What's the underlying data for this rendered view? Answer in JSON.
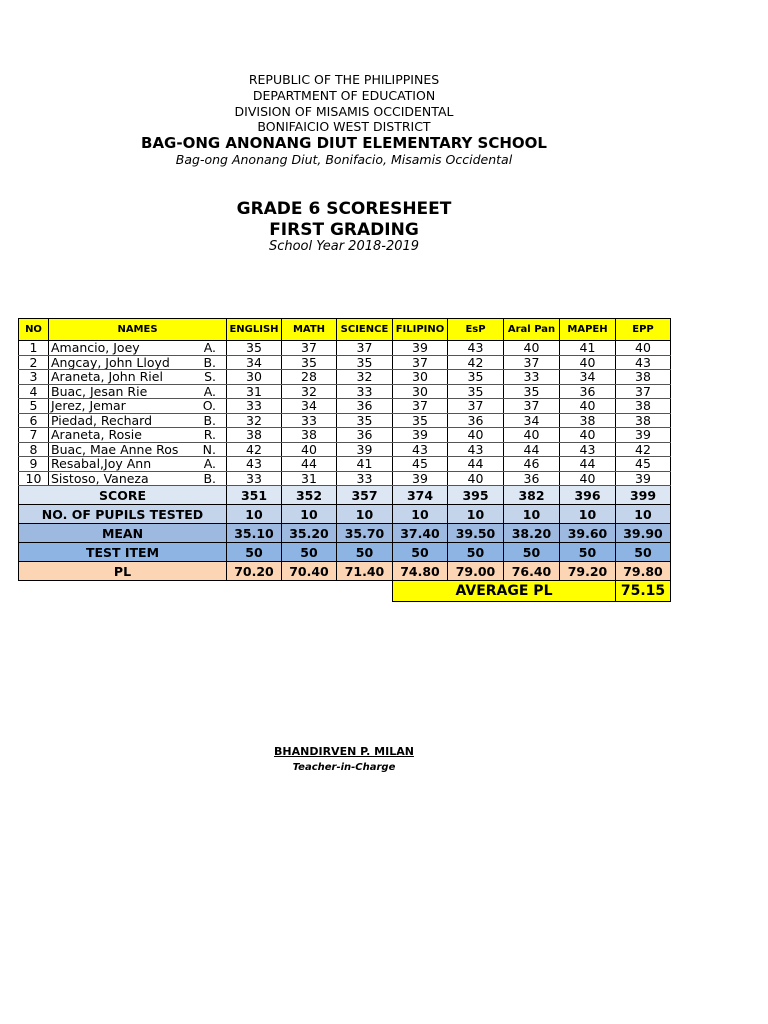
{
  "header": {
    "line1": "REPUBLIC OF THE PHILIPPINES",
    "line2": "DEPARTMENT OF EDUCATION",
    "line3": "DIVISION OF MISAMIS OCCIDENTAL",
    "line4": "BONIFAICIO WEST  DISTRICT",
    "school": "BAG-ONG ANONANG DIUT ELEMENTARY SCHOOL",
    "address": "Bag-ong Anonang Diut, Bonifacio, Misamis Occidental",
    "title": "GRADE 6 SCORESHEET",
    "subtitle": "FIRST GRADING",
    "school_year": "School Year 2018-2019"
  },
  "table": {
    "columns": [
      "NO",
      "NAMES",
      "ENGLISH",
      "MATH",
      "SCIENCE",
      "FILIPINO",
      "EsP",
      "Aral Pan",
      "MAPEH",
      "EPP"
    ],
    "rows": [
      {
        "no": "1",
        "name": "Amancio, Joey",
        "mi": "A.",
        "scores": [
          "35",
          "37",
          "37",
          "39",
          "43",
          "40",
          "41",
          "40"
        ]
      },
      {
        "no": "2",
        "name": "Angcay, John Lloyd",
        "mi": "B.",
        "scores": [
          "34",
          "35",
          "35",
          "37",
          "42",
          "37",
          "40",
          "43"
        ]
      },
      {
        "no": "3",
        "name": "Araneta, John Riel",
        "mi": "S.",
        "scores": [
          "30",
          "28",
          "32",
          "30",
          "35",
          "33",
          "34",
          "38"
        ]
      },
      {
        "no": "4",
        "name": "Buac, Jesan Rie",
        "mi": "A.",
        "scores": [
          "31",
          "32",
          "33",
          "30",
          "35",
          "35",
          "36",
          "37"
        ]
      },
      {
        "no": "5",
        "name": "Jerez, Jemar",
        "mi": "O.",
        "scores": [
          "33",
          "34",
          "36",
          "37",
          "37",
          "37",
          "40",
          "38"
        ]
      },
      {
        "no": "6",
        "name": "Piedad, Rechard",
        "mi": "B.",
        "scores": [
          "32",
          "33",
          "35",
          "35",
          "36",
          "34",
          "38",
          "38"
        ]
      },
      {
        "no": "7",
        "name": "Araneta, Rosie",
        "mi": "R.",
        "scores": [
          "38",
          "38",
          "36",
          "39",
          "40",
          "40",
          "40",
          "39"
        ]
      },
      {
        "no": "8",
        "name": "Buac, Mae Anne Ros",
        "mi": "N.",
        "scores": [
          "42",
          "40",
          "39",
          "43",
          "43",
          "44",
          "43",
          "42"
        ]
      },
      {
        "no": "9",
        "name": "Resabal,Joy Ann",
        "mi": "A.",
        "scores": [
          "43",
          "44",
          "41",
          "45",
          "44",
          "46",
          "44",
          "45"
        ]
      },
      {
        "no": "10",
        "name": "Sistoso, Vaneza",
        "mi": "B.",
        "scores": [
          "33",
          "31",
          "33",
          "39",
          "40",
          "36",
          "40",
          "39"
        ]
      }
    ],
    "summary": [
      {
        "key": "score",
        "label": "SCORE",
        "values": [
          "351",
          "352",
          "357",
          "374",
          "395",
          "382",
          "396",
          "399"
        ]
      },
      {
        "key": "pupils",
        "label": "NO. OF PUPILS TESTED",
        "values": [
          "10",
          "10",
          "10",
          "10",
          "10",
          "10",
          "10",
          "10"
        ]
      },
      {
        "key": "mean",
        "label": "MEAN",
        "values": [
          "35.10",
          "35.20",
          "35.70",
          "37.40",
          "39.50",
          "38.20",
          "39.60",
          "39.90"
        ]
      },
      {
        "key": "item",
        "label": "TEST ITEM",
        "values": [
          "50",
          "50",
          "50",
          "50",
          "50",
          "50",
          "50",
          "50"
        ]
      },
      {
        "key": "pl",
        "label": "PL",
        "values": [
          "70.20",
          "70.40",
          "71.40",
          "74.80",
          "79.00",
          "76.40",
          "79.20",
          "79.80"
        ]
      }
    ],
    "average_pl_label": "AVERAGE PL",
    "average_pl_value": "75.15"
  },
  "signatory": {
    "name": "BHANDIRVEN P. MILAN",
    "position": "Teacher-in-Charge"
  },
  "colors": {
    "header_yellow": "#ffff00",
    "pl_peach": "#fcd5b4",
    "mean_blue": "#9db9df"
  }
}
